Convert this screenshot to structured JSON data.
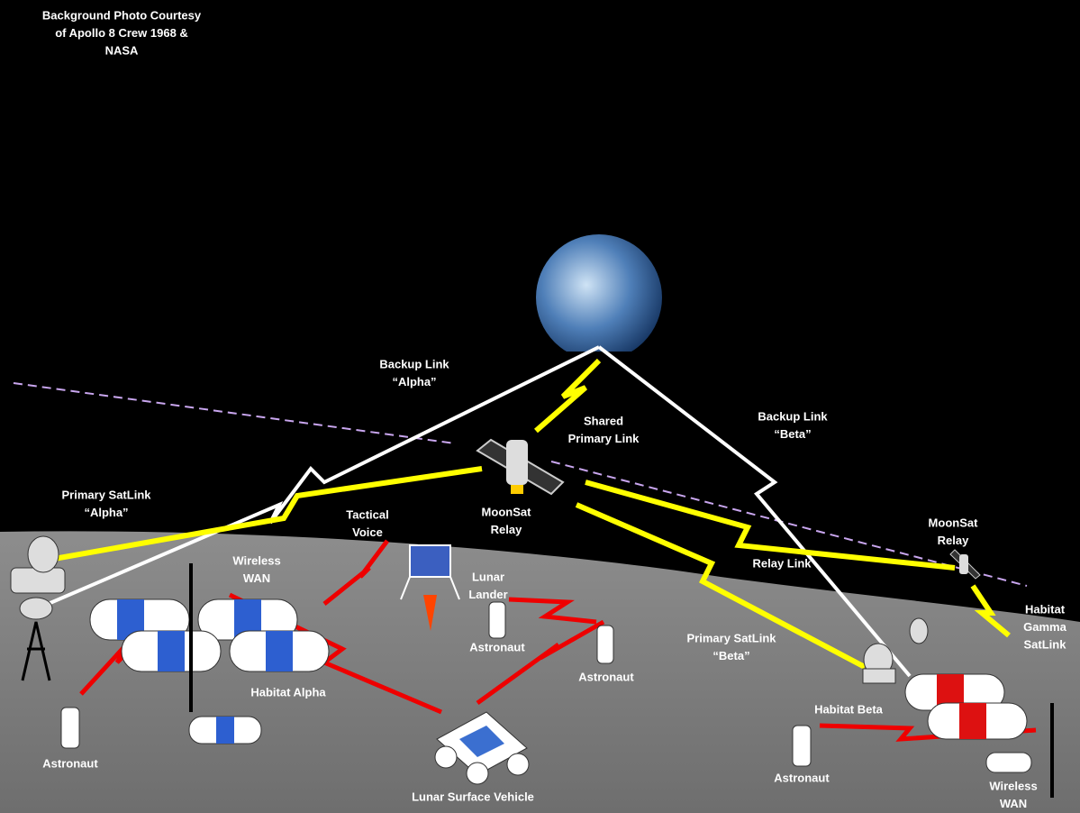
{
  "labels": [
    {
      "lines": [
        "Background Photo Courtesy",
        "of Apollo 8 Crew 1968 &",
        "NASA"
      ]
    },
    {
      "lines": [
        "Backup Link",
        "“Alpha”"
      ]
    },
    {
      "lines": [
        "Shared",
        "Primary Link"
      ]
    },
    {
      "lines": [
        "Backup Link",
        "“Beta”"
      ]
    },
    {
      "lines": [
        "Primary SatLink",
        "“Alpha”"
      ]
    },
    {
      "lines": [
        "MoonSat",
        "Relay"
      ]
    },
    {
      "lines": [
        "Tactical",
        "Voice"
      ]
    },
    {
      "lines": [
        "Wireless",
        "WAN"
      ]
    },
    {
      "lines": [
        "Lunar",
        "Lander"
      ]
    },
    {
      "lines": [
        "Relay Link"
      ]
    },
    {
      "lines": [
        "MoonSat",
        "Relay"
      ]
    },
    {
      "lines": [
        "Habitat",
        "Gamma",
        "SatLink"
      ]
    },
    {
      "lines": [
        "Primary SatLink",
        "“Beta”"
      ]
    },
    {
      "lines": [
        "Astronaut"
      ]
    },
    {
      "lines": [
        "Astronaut"
      ]
    },
    {
      "lines": [
        "Habitat Alpha"
      ]
    },
    {
      "lines": [
        "Habitat Beta"
      ]
    },
    {
      "lines": [
        "Astronaut"
      ]
    },
    {
      "lines": [
        "Astronaut"
      ]
    },
    {
      "lines": [
        "Lunar Surface Vehicle"
      ]
    },
    {
      "lines": [
        "Wireless",
        "WAN"
      ]
    }
  ]
}
